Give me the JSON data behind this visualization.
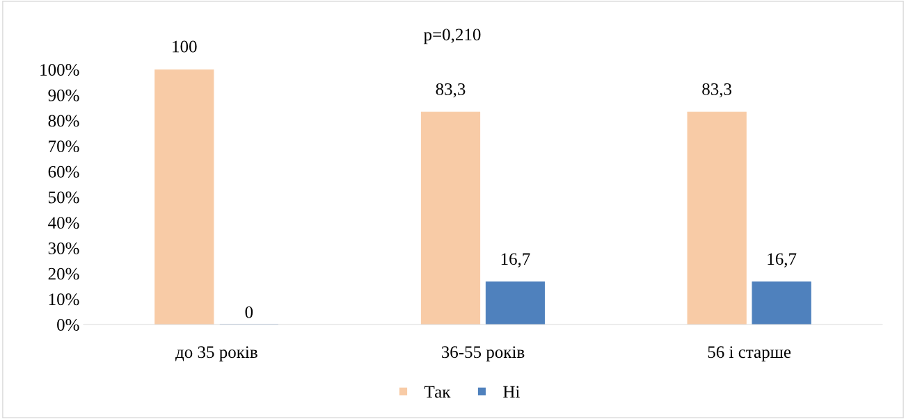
{
  "chart_data": {
    "type": "bar",
    "categories": [
      "до 35 років",
      "36-55 років",
      "56 і старше"
    ],
    "series": [
      {
        "name": "Так",
        "color": "#f8cba6",
        "values": [
          100,
          83.3,
          83.3
        ],
        "value_labels": [
          "100",
          "83,3",
          "83,3"
        ]
      },
      {
        "name": "Ні",
        "color": "#4f81bd",
        "values": [
          0,
          16.7,
          16.7
        ],
        "value_labels": [
          "0",
          "16,7",
          "16,7"
        ]
      }
    ],
    "ylim": [
      0,
      100
    ],
    "yticks": [
      {
        "value": 0,
        "label": "0%"
      },
      {
        "value": 10,
        "label": "10%"
      },
      {
        "value": 20,
        "label": "20%"
      },
      {
        "value": 30,
        "label": "30%"
      },
      {
        "value": 40,
        "label": "40%"
      },
      {
        "value": 50,
        "label": "50%"
      },
      {
        "value": 60,
        "label": "60%"
      },
      {
        "value": 70,
        "label": "70%"
      },
      {
        "value": 80,
        "label": "80%"
      },
      {
        "value": 90,
        "label": "90%"
      },
      {
        "value": 100,
        "label": "100%"
      }
    ],
    "annotations": [
      "p=0,210"
    ],
    "grid": false,
    "legend": "bottom"
  }
}
